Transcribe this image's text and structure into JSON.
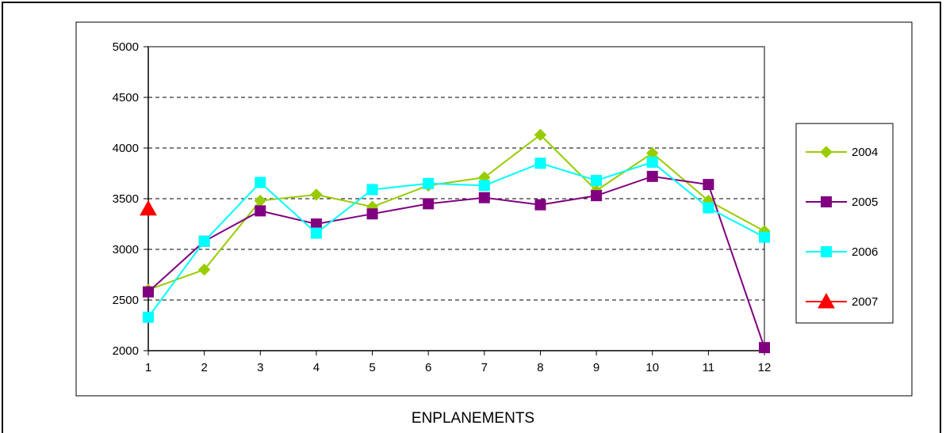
{
  "chart_data": {
    "type": "line",
    "title": "",
    "xlabel": "ENPLANEMENTS",
    "ylabel": "",
    "x": [
      1,
      2,
      3,
      4,
      5,
      6,
      7,
      8,
      9,
      10,
      11,
      12
    ],
    "xticks": [
      "1",
      "2",
      "3",
      "4",
      "5",
      "6",
      "7",
      "8",
      "9",
      "10",
      "11",
      "12"
    ],
    "ylim": [
      2000,
      5000
    ],
    "yticks": [
      "2000",
      "2500",
      "3000",
      "3500",
      "4000",
      "4500",
      "5000"
    ],
    "grid": "horizontal dashed",
    "legend_position": "right",
    "series": [
      {
        "name": "2004",
        "color": "#99cc00",
        "marker": "diamond",
        "values": [
          2600,
          2800,
          3480,
          3540,
          3420,
          3630,
          3710,
          4130,
          3580,
          3950,
          3480,
          3180
        ]
      },
      {
        "name": "2005",
        "color": "#800080",
        "marker": "square",
        "values": [
          2580,
          3080,
          3380,
          3250,
          3350,
          3450,
          3510,
          3440,
          3530,
          3720,
          3640,
          2030
        ]
      },
      {
        "name": "2006",
        "color": "#00ffff",
        "marker": "square",
        "values": [
          2330,
          3080,
          3660,
          3160,
          3590,
          3650,
          3630,
          3850,
          3680,
          3860,
          3410,
          3120
        ]
      },
      {
        "name": "2007",
        "color": "#ff0000",
        "marker": "triangle",
        "values": [
          3400,
          null,
          null,
          null,
          null,
          null,
          null,
          null,
          null,
          null,
          null,
          null
        ]
      }
    ]
  }
}
